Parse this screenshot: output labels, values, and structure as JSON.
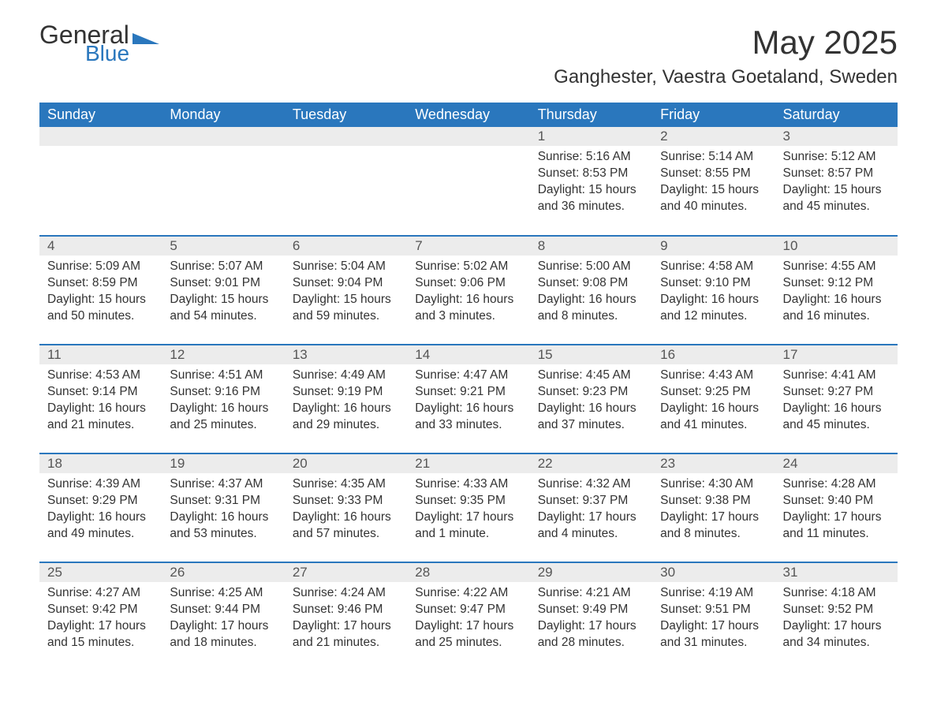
{
  "logo": {
    "general": "General",
    "blue": "Blue",
    "accent_color": "#2a77bd"
  },
  "title": "May 2025",
  "location": "Ganghester, Vaestra Goetaland, Sweden",
  "colors": {
    "header_bg": "#2a77bd",
    "header_text": "#ffffff",
    "daynum_bg": "#ececec",
    "row_border": "#2a77bd",
    "body_text": "#333333"
  },
  "day_headers": [
    "Sunday",
    "Monday",
    "Tuesday",
    "Wednesday",
    "Thursday",
    "Friday",
    "Saturday"
  ],
  "weeks": [
    [
      null,
      null,
      null,
      null,
      {
        "n": "1",
        "sr": "Sunrise: 5:16 AM",
        "ss": "Sunset: 8:53 PM",
        "d1": "Daylight: 15 hours",
        "d2": "and 36 minutes."
      },
      {
        "n": "2",
        "sr": "Sunrise: 5:14 AM",
        "ss": "Sunset: 8:55 PM",
        "d1": "Daylight: 15 hours",
        "d2": "and 40 minutes."
      },
      {
        "n": "3",
        "sr": "Sunrise: 5:12 AM",
        "ss": "Sunset: 8:57 PM",
        "d1": "Daylight: 15 hours",
        "d2": "and 45 minutes."
      }
    ],
    [
      {
        "n": "4",
        "sr": "Sunrise: 5:09 AM",
        "ss": "Sunset: 8:59 PM",
        "d1": "Daylight: 15 hours",
        "d2": "and 50 minutes."
      },
      {
        "n": "5",
        "sr": "Sunrise: 5:07 AM",
        "ss": "Sunset: 9:01 PM",
        "d1": "Daylight: 15 hours",
        "d2": "and 54 minutes."
      },
      {
        "n": "6",
        "sr": "Sunrise: 5:04 AM",
        "ss": "Sunset: 9:04 PM",
        "d1": "Daylight: 15 hours",
        "d2": "and 59 minutes."
      },
      {
        "n": "7",
        "sr": "Sunrise: 5:02 AM",
        "ss": "Sunset: 9:06 PM",
        "d1": "Daylight: 16 hours",
        "d2": "and 3 minutes."
      },
      {
        "n": "8",
        "sr": "Sunrise: 5:00 AM",
        "ss": "Sunset: 9:08 PM",
        "d1": "Daylight: 16 hours",
        "d2": "and 8 minutes."
      },
      {
        "n": "9",
        "sr": "Sunrise: 4:58 AM",
        "ss": "Sunset: 9:10 PM",
        "d1": "Daylight: 16 hours",
        "d2": "and 12 minutes."
      },
      {
        "n": "10",
        "sr": "Sunrise: 4:55 AM",
        "ss": "Sunset: 9:12 PM",
        "d1": "Daylight: 16 hours",
        "d2": "and 16 minutes."
      }
    ],
    [
      {
        "n": "11",
        "sr": "Sunrise: 4:53 AM",
        "ss": "Sunset: 9:14 PM",
        "d1": "Daylight: 16 hours",
        "d2": "and 21 minutes."
      },
      {
        "n": "12",
        "sr": "Sunrise: 4:51 AM",
        "ss": "Sunset: 9:16 PM",
        "d1": "Daylight: 16 hours",
        "d2": "and 25 minutes."
      },
      {
        "n": "13",
        "sr": "Sunrise: 4:49 AM",
        "ss": "Sunset: 9:19 PM",
        "d1": "Daylight: 16 hours",
        "d2": "and 29 minutes."
      },
      {
        "n": "14",
        "sr": "Sunrise: 4:47 AM",
        "ss": "Sunset: 9:21 PM",
        "d1": "Daylight: 16 hours",
        "d2": "and 33 minutes."
      },
      {
        "n": "15",
        "sr": "Sunrise: 4:45 AM",
        "ss": "Sunset: 9:23 PM",
        "d1": "Daylight: 16 hours",
        "d2": "and 37 minutes."
      },
      {
        "n": "16",
        "sr": "Sunrise: 4:43 AM",
        "ss": "Sunset: 9:25 PM",
        "d1": "Daylight: 16 hours",
        "d2": "and 41 minutes."
      },
      {
        "n": "17",
        "sr": "Sunrise: 4:41 AM",
        "ss": "Sunset: 9:27 PM",
        "d1": "Daylight: 16 hours",
        "d2": "and 45 minutes."
      }
    ],
    [
      {
        "n": "18",
        "sr": "Sunrise: 4:39 AM",
        "ss": "Sunset: 9:29 PM",
        "d1": "Daylight: 16 hours",
        "d2": "and 49 minutes."
      },
      {
        "n": "19",
        "sr": "Sunrise: 4:37 AM",
        "ss": "Sunset: 9:31 PM",
        "d1": "Daylight: 16 hours",
        "d2": "and 53 minutes."
      },
      {
        "n": "20",
        "sr": "Sunrise: 4:35 AM",
        "ss": "Sunset: 9:33 PM",
        "d1": "Daylight: 16 hours",
        "d2": "and 57 minutes."
      },
      {
        "n": "21",
        "sr": "Sunrise: 4:33 AM",
        "ss": "Sunset: 9:35 PM",
        "d1": "Daylight: 17 hours",
        "d2": "and 1 minute."
      },
      {
        "n": "22",
        "sr": "Sunrise: 4:32 AM",
        "ss": "Sunset: 9:37 PM",
        "d1": "Daylight: 17 hours",
        "d2": "and 4 minutes."
      },
      {
        "n": "23",
        "sr": "Sunrise: 4:30 AM",
        "ss": "Sunset: 9:38 PM",
        "d1": "Daylight: 17 hours",
        "d2": "and 8 minutes."
      },
      {
        "n": "24",
        "sr": "Sunrise: 4:28 AM",
        "ss": "Sunset: 9:40 PM",
        "d1": "Daylight: 17 hours",
        "d2": "and 11 minutes."
      }
    ],
    [
      {
        "n": "25",
        "sr": "Sunrise: 4:27 AM",
        "ss": "Sunset: 9:42 PM",
        "d1": "Daylight: 17 hours",
        "d2": "and 15 minutes."
      },
      {
        "n": "26",
        "sr": "Sunrise: 4:25 AM",
        "ss": "Sunset: 9:44 PM",
        "d1": "Daylight: 17 hours",
        "d2": "and 18 minutes."
      },
      {
        "n": "27",
        "sr": "Sunrise: 4:24 AM",
        "ss": "Sunset: 9:46 PM",
        "d1": "Daylight: 17 hours",
        "d2": "and 21 minutes."
      },
      {
        "n": "28",
        "sr": "Sunrise: 4:22 AM",
        "ss": "Sunset: 9:47 PM",
        "d1": "Daylight: 17 hours",
        "d2": "and 25 minutes."
      },
      {
        "n": "29",
        "sr": "Sunrise: 4:21 AM",
        "ss": "Sunset: 9:49 PM",
        "d1": "Daylight: 17 hours",
        "d2": "and 28 minutes."
      },
      {
        "n": "30",
        "sr": "Sunrise: 4:19 AM",
        "ss": "Sunset: 9:51 PM",
        "d1": "Daylight: 17 hours",
        "d2": "and 31 minutes."
      },
      {
        "n": "31",
        "sr": "Sunrise: 4:18 AM",
        "ss": "Sunset: 9:52 PM",
        "d1": "Daylight: 17 hours",
        "d2": "and 34 minutes."
      }
    ]
  ]
}
